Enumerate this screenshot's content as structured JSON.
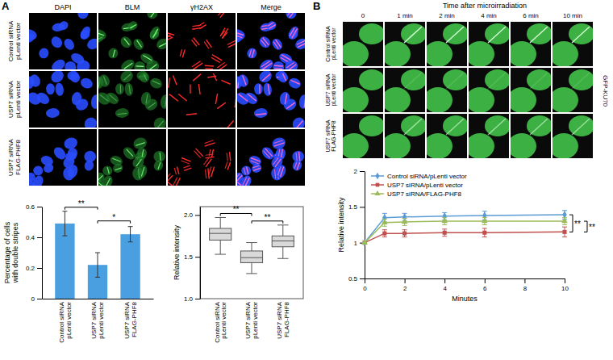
{
  "figure": {
    "panel_a": {
      "label": "A",
      "channels": [
        "DAPI",
        "BLM",
        "γH2AX",
        "Merge"
      ],
      "conditions": [
        [
          "Control siRNA",
          "pLenti vector"
        ],
        [
          "USP7 siRNA",
          "pLenti vector"
        ],
        [
          "USP7 siRNA",
          "FLAG-PHF8"
        ]
      ]
    },
    "panel_b": {
      "label": "B",
      "header": "Time after microirradiation",
      "times": [
        "0",
        "1 min",
        "2 min",
        "4 min",
        "6 min",
        "10 min"
      ],
      "conditions": [
        [
          "Control siRNA",
          "pLenti vector"
        ],
        [
          "USP7 siRNA",
          "pLenti vector"
        ],
        [
          "USP7 siRNA",
          "FLAG-PHF8"
        ]
      ],
      "protein": "GFP-KU70"
    }
  },
  "chart_data": [
    {
      "type": "bar",
      "categories": [
        [
          "Control siRNA",
          "pLenti vector"
        ],
        [
          "USP7 siRNA",
          "pLenti vector"
        ],
        [
          "USP7 siRNA",
          "FLAG-PHF8"
        ]
      ],
      "values": [
        0.49,
        0.22,
        0.42
      ],
      "errors": [
        0.08,
        0.08,
        0.05
      ],
      "color": "#4a9fe0",
      "y_label": [
        "Percentage of cells",
        "with double stripes"
      ],
      "ylim": [
        0,
        0.6
      ],
      "yticks": [
        0,
        0.2,
        0.4,
        0.6
      ],
      "annotations": [
        {
          "from": 0,
          "to": 1,
          "text": "**"
        },
        {
          "from": 1,
          "to": 2,
          "text": "*"
        }
      ]
    },
    {
      "type": "box",
      "categories": [
        [
          "Control siRNA",
          "pLenti vector"
        ],
        [
          "USP7 siRNA",
          "pLenti vector"
        ],
        [
          "USP7 siRNA",
          "FLAG-PHF8"
        ]
      ],
      "boxes": [
        {
          "min": 1.53,
          "q1": 1.7,
          "median": 1.78,
          "q3": 1.84,
          "max": 1.97
        },
        {
          "min": 1.3,
          "q1": 1.43,
          "median": 1.49,
          "q3": 1.57,
          "max": 1.67
        },
        {
          "min": 1.48,
          "q1": 1.62,
          "median": 1.69,
          "q3": 1.75,
          "max": 1.88
        }
      ],
      "color": "#d9d9d9",
      "y_label": "Relative intensity",
      "ylim": [
        1.0,
        2.1
      ],
      "yticks": [
        {
          "value": 1.0,
          "label": "1.0"
        },
        {
          "value": 1.5,
          "label": "1.5"
        },
        {
          "value": 2.0,
          "label": "2.0"
        }
      ],
      "annotations": [
        {
          "from": 0,
          "to": 1,
          "text": "**"
        },
        {
          "from": 1,
          "to": 2,
          "text": "**"
        }
      ]
    },
    {
      "type": "line",
      "x": [
        0,
        1,
        2,
        4,
        6,
        10
      ],
      "series": [
        {
          "name": "Control siRNA/pLenti vector",
          "color": "#5b9bd5",
          "marker": "diamond",
          "values": [
            1,
            1.35,
            1.36,
            1.37,
            1.38,
            1.39
          ],
          "errors": [
            0,
            0.06,
            0.05,
            0.05,
            0.06,
            0.06
          ]
        },
        {
          "name": "USP7 siRNA/pLenti vector",
          "color": "#c0504d",
          "marker": "square",
          "values": [
            1,
            1.13,
            1.13,
            1.14,
            1.14,
            1.15
          ],
          "errors": [
            0,
            0.05,
            0.05,
            0.05,
            0.06,
            0.07
          ]
        },
        {
          "name": "USP7 siRNA/FLAG-PHF8",
          "color": "#9bbb59",
          "marker": "triangle",
          "values": [
            1,
            1.28,
            1.29,
            1.3,
            1.3,
            1.3
          ],
          "errors": [
            0,
            0.05,
            0.05,
            0.05,
            0.05,
            0.05
          ]
        }
      ],
      "x_label": "Minutes",
      "y_label": "Relative intensity",
      "xlim": [
        0,
        10
      ],
      "xticks": [
        0,
        2,
        4,
        6,
        8,
        10
      ],
      "ylim": [
        0.5,
        2
      ],
      "yticks": [
        0.5,
        1,
        1.5,
        2
      ],
      "legend": "top-left",
      "annotations": [
        {
          "from": 0,
          "to": 1,
          "text": "**"
        },
        {
          "from": 2,
          "to": 1,
          "text": "**"
        }
      ]
    }
  ]
}
